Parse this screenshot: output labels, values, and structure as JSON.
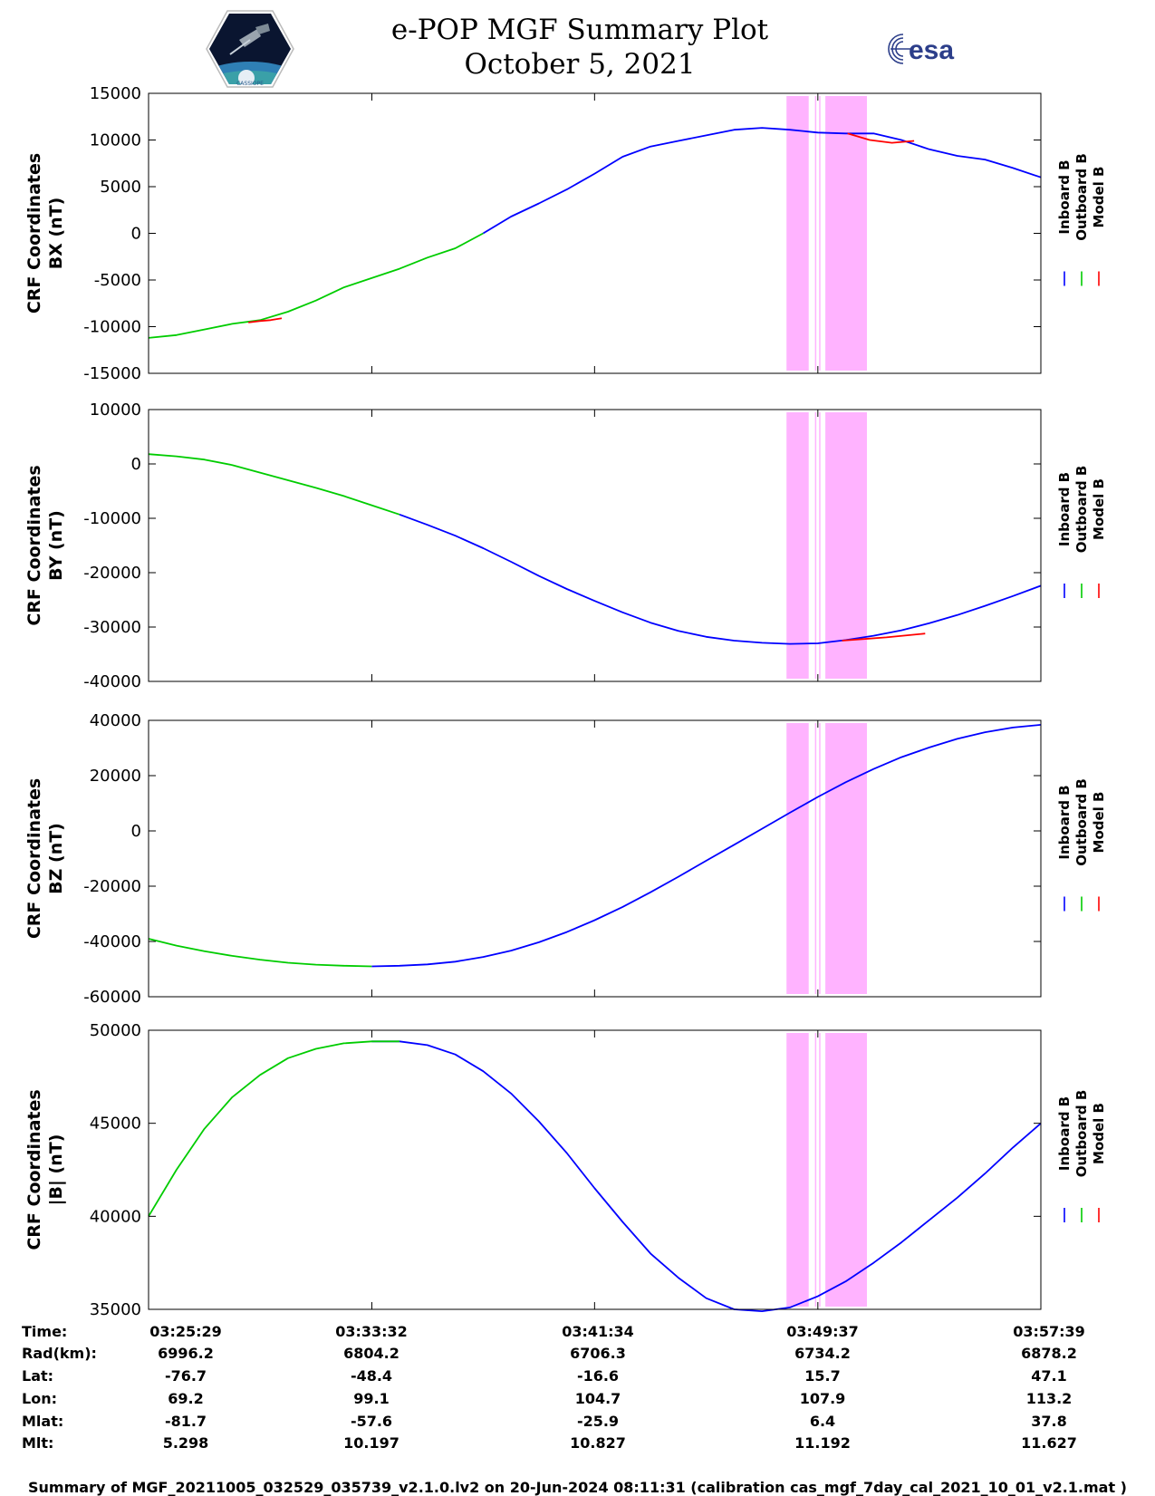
{
  "header": {
    "title_line1": "e-POP MGF Summary Plot",
    "title_line2": "October 5, 2021",
    "logo_left_text": "CASSIOPE",
    "logo_right_text": "esa"
  },
  "colors": {
    "inboard": "#0000ff",
    "outboard": "#00cc00",
    "model": "#ff0000",
    "flag_band": "#ffb3ff"
  },
  "legend": [
    "Inboard B",
    "Outboard B",
    "Model B"
  ],
  "chart_data": [
    {
      "type": "line",
      "ylabel_line1": "CRF Coordinates",
      "ylabel_line2": "BX (nT)",
      "ylim": [
        -15000,
        15000
      ],
      "yticks": [
        "15000",
        "10000",
        "5000",
        "0",
        "-5000",
        "-10000",
        "-15000"
      ],
      "x_minutes": [
        0,
        1,
        2,
        3,
        4,
        5,
        6,
        7,
        8,
        9,
        10,
        11,
        12,
        13,
        14,
        15,
        16,
        17,
        18,
        19,
        20,
        21,
        22,
        23,
        24,
        25,
        26,
        27,
        28,
        29,
        30,
        31,
        32
      ],
      "series": [
        {
          "name": "Inboard B",
          "color_key": "inboard",
          "from": 12,
          "values": [
            -11200,
            -10900,
            -10300,
            -9700,
            -9300,
            -8400,
            -7200,
            -5800,
            -4800,
            -3800,
            -2600,
            -1600,
            0,
            1800,
            3200,
            4700,
            6400,
            8200,
            9300,
            9900,
            10500,
            11100,
            11300,
            11100,
            10800,
            10700,
            10700,
            10000,
            9000,
            8300,
            7900,
            7000,
            6000
          ]
        },
        {
          "name": "Outboard B",
          "color_key": "outboard",
          "to": 12,
          "values": [
            -11200,
            -10900,
            -10300,
            -9700,
            -9300,
            -8400,
            -7200,
            -5800,
            -4800,
            -3800,
            -2600,
            -1600,
            0
          ]
        },
        {
          "name": "Model B",
          "color_key": "model",
          "segments": [
            {
              "x": [
                3.6,
                4.0,
                4.4,
                4.8
              ],
              "values": [
                -9550,
                -9400,
                -9300,
                -9100
              ]
            },
            {
              "x": [
                25.2,
                26.0,
                26.8,
                27.6
              ],
              "values": [
                10700,
                10000,
                9700,
                9900
              ]
            }
          ]
        }
      ]
    },
    {
      "type": "line",
      "ylabel_line1": "CRF Coordinates",
      "ylabel_line2": "BY (nT)",
      "ylim": [
        -40000,
        10000
      ],
      "yticks": [
        "10000",
        "0",
        "-10000",
        "-20000",
        "-30000",
        "-40000"
      ],
      "x_minutes": [
        0,
        1,
        2,
        3,
        4,
        5,
        6,
        7,
        8,
        9,
        10,
        11,
        12,
        13,
        14,
        15,
        16,
        17,
        18,
        19,
        20,
        21,
        22,
        23,
        24,
        25,
        26,
        27,
        28,
        29,
        30,
        31,
        32
      ],
      "series": [
        {
          "name": "Inboard B",
          "color_key": "inboard",
          "from": 9,
          "values": [
            1800,
            1400,
            800,
            -200,
            -1600,
            -3000,
            -4400,
            -5900,
            -7600,
            -9300,
            -11200,
            -13200,
            -15500,
            -18000,
            -20600,
            -23000,
            -25200,
            -27300,
            -29200,
            -30700,
            -31800,
            -32500,
            -32900,
            -33100,
            -33000,
            -32400,
            -31600,
            -30600,
            -29300,
            -27800,
            -26100,
            -24300,
            -22400
          ]
        },
        {
          "name": "Outboard B",
          "color_key": "outboard",
          "to": 9,
          "values": [
            1800,
            1400,
            800,
            -200,
            -1600,
            -3000,
            -4400,
            -5900,
            -7600,
            -9300
          ]
        },
        {
          "name": "Model B",
          "color_key": "model",
          "segments": [
            {
              "x": [
                25.0,
                25.8,
                26.6,
                27.4,
                28.0
              ],
              "values": [
                -32500,
                -32200,
                -31900,
                -31500,
                -31200
              ]
            }
          ]
        }
      ]
    },
    {
      "type": "line",
      "ylabel_line1": "CRF Coordinates",
      "ylabel_line2": "BZ (nT)",
      "ylim": [
        -60000,
        40000
      ],
      "yticks": [
        "40000",
        "20000",
        "0",
        "-20000",
        "-40000",
        "-60000"
      ],
      "x_minutes": [
        0,
        1,
        2,
        3,
        4,
        5,
        6,
        7,
        8,
        9,
        10,
        11,
        12,
        13,
        14,
        15,
        16,
        17,
        18,
        19,
        20,
        21,
        22,
        23,
        24,
        25,
        26,
        27,
        28,
        29,
        30,
        31,
        32
      ],
      "series": [
        {
          "name": "Inboard B",
          "color_key": "inboard",
          "from": 8.6,
          "values": [
            -39000,
            -41500,
            -43500,
            -45200,
            -46600,
            -47700,
            -48400,
            -48800,
            -49000,
            -48800,
            -48300,
            -47300,
            -45600,
            -43300,
            -40300,
            -36600,
            -32300,
            -27500,
            -22200,
            -16600,
            -10800,
            -5000,
            800,
            6600,
            12300,
            17600,
            22400,
            26700,
            30200,
            33300,
            35700,
            37400,
            38400
          ]
        },
        {
          "name": "Outboard B",
          "color_key": "outboard",
          "to": 8.6,
          "values": [
            -39000,
            -41500,
            -43500,
            -45200,
            -46600,
            -47700,
            -48400,
            -48800,
            -49000
          ]
        }
      ]
    },
    {
      "type": "line",
      "ylabel_line1": "CRF Coordinates",
      "ylabel_line2": "|B| (nT)",
      "ylim": [
        35000,
        50000
      ],
      "yticks": [
        "50000",
        "45000",
        "40000",
        "35000"
      ],
      "x_minutes": [
        0,
        1,
        2,
        3,
        4,
        5,
        6,
        7,
        8,
        9,
        10,
        11,
        12,
        13,
        14,
        15,
        16,
        17,
        18,
        19,
        20,
        21,
        22,
        23,
        24,
        25,
        26,
        27,
        28,
        29,
        30,
        31,
        32
      ],
      "series": [
        {
          "name": "Inboard B",
          "color_key": "inboard",
          "from": 8.7,
          "values": [
            40000,
            42500,
            44700,
            46400,
            47600,
            48500,
            49000,
            49300,
            49400,
            49400,
            49200,
            48700,
            47800,
            46600,
            45100,
            43400,
            41500,
            39700,
            38000,
            36700,
            35600,
            35000,
            34900,
            35100,
            35700,
            36500,
            37500,
            38600,
            39800,
            41000,
            42300,
            43700,
            45000
          ]
        },
        {
          "name": "Outboard B",
          "color_key": "outboard",
          "to": 8.7,
          "values": [
            40000,
            42500,
            44700,
            46400,
            47600,
            48500,
            49000,
            49300,
            49400,
            49400
          ]
        }
      ]
    }
  ],
  "xaxis": {
    "range_minutes": [
      0,
      32.17
    ],
    "tick_minutes": [
      0,
      8.05,
      16.08,
      24.13,
      32.17
    ],
    "flag_bands_minutes": [
      [
        23.0,
        23.8
      ],
      [
        24.4,
        25.9
      ]
    ],
    "flag_band_gap_minutes": [
      24.05,
      24.2
    ]
  },
  "ephemeris": {
    "labels": [
      "Time:",
      "Rad(km):",
      "Lat:",
      "Lon:",
      "Mlat:",
      "Mlt:"
    ],
    "columns": [
      [
        "03:25:29",
        "6996.2",
        "-76.7",
        "69.2",
        "-81.7",
        "5.298"
      ],
      [
        "03:33:32",
        "6804.2",
        "-48.4",
        "99.1",
        "-57.6",
        "10.197"
      ],
      [
        "03:41:34",
        "6706.3",
        "-16.6",
        "104.7",
        "-25.9",
        "10.827"
      ],
      [
        "03:49:37",
        "6734.2",
        "15.7",
        "107.9",
        "6.4",
        "11.192"
      ],
      [
        "03:57:39",
        "6878.2",
        "47.1",
        "113.2",
        "37.8",
        "11.627"
      ]
    ]
  },
  "footer": "Summary of MGF_20211005_032529_035739_v2.1.0.lv2 on 20-Jun-2024 08:11:31 (calibration cas_mgf_7day_cal_2021_10_01_v2.1.mat )"
}
